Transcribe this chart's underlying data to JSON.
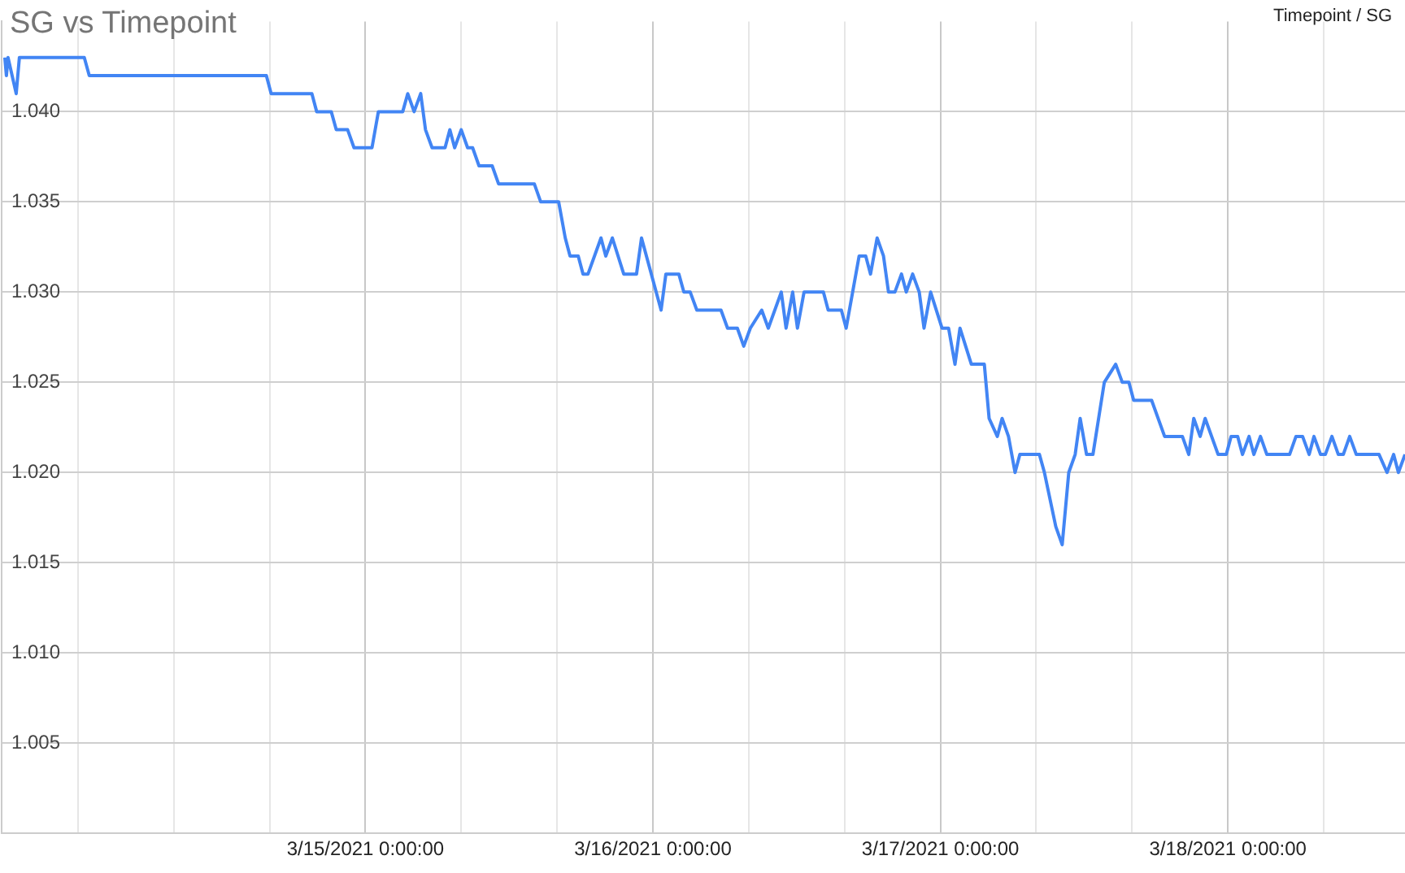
{
  "chart_data": {
    "type": "line",
    "title": "SG vs Timepoint",
    "annotations": [
      "Timepoint / SG"
    ],
    "x": [
      "2021-03-13T17:54",
      "2021-03-13T18:02",
      "2021-03-13T18:10",
      "2021-03-13T18:51",
      "2021-03-13T19:07",
      "2021-03-14T00:32",
      "2021-03-14T00:57",
      "2021-03-14T15:44",
      "2021-03-14T16:08",
      "2021-03-14T19:32",
      "2021-03-14T19:56",
      "2021-03-14T21:09",
      "2021-03-14T21:34",
      "2021-03-14T22:31",
      "2021-03-14T23:03",
      "2021-03-15T00:33",
      "2021-03-15T01:05",
      "2021-03-15T03:07",
      "2021-03-15T03:32",
      "2021-03-15T04:04",
      "2021-03-15T04:37",
      "2021-03-15T05:01",
      "2021-03-15T05:34",
      "2021-03-15T06:39",
      "2021-03-15T07:03",
      "2021-03-15T07:27",
      "2021-03-15T08:00",
      "2021-03-15T08:32",
      "2021-03-15T08:57",
      "2021-03-15T09:29",
      "2021-03-15T10:35",
      "2021-03-15T11:07",
      "2021-03-15T14:06",
      "2021-03-15T14:38",
      "2021-03-15T16:08",
      "2021-03-15T16:41",
      "2021-03-15T17:05",
      "2021-03-15T17:46",
      "2021-03-15T18:10",
      "2021-03-15T18:35",
      "2021-03-15T19:40",
      "2021-03-15T20:04",
      "2021-03-15T20:37",
      "2021-03-15T21:34",
      "2021-03-15T22:38",
      "2021-03-15T23:03",
      "2021-03-16T00:41",
      "2021-03-16T01:05",
      "2021-03-16T02:10",
      "2021-03-16T02:35",
      "2021-03-16T03:07",
      "2021-03-16T03:40",
      "2021-03-16T05:41",
      "2021-03-16T06:14",
      "2021-03-16T07:03",
      "2021-03-16T07:35",
      "2021-03-16T08:08",
      "2021-03-16T09:05",
      "2021-03-16T09:38",
      "2021-03-16T10:43",
      "2021-03-16T11:07",
      "2021-03-16T11:40",
      "2021-03-16T12:04",
      "2021-03-16T12:37",
      "2021-03-16T14:14",
      "2021-03-16T14:38",
      "2021-03-16T15:44",
      "2021-03-16T16:08",
      "2021-03-16T17:13",
      "2021-03-16T17:46",
      "2021-03-16T18:10",
      "2021-03-16T18:43",
      "2021-03-16T19:15",
      "2021-03-16T19:40",
      "2021-03-16T20:12",
      "2021-03-16T20:45",
      "2021-03-16T21:09",
      "2021-03-16T21:41",
      "2021-03-16T22:14",
      "2021-03-16T22:38",
      "2021-03-16T23:11",
      "2021-03-17T00:08",
      "2021-03-17T00:41",
      "2021-03-17T01:13",
      "2021-03-17T01:38",
      "2021-03-17T02:35",
      "2021-03-17T03:40",
      "2021-03-17T04:04",
      "2021-03-17T04:45",
      "2021-03-17T05:09",
      "2021-03-17T05:41",
      "2021-03-17T06:14",
      "2021-03-17T06:38",
      "2021-03-17T08:16",
      "2021-03-17T08:41",
      "2021-03-17T09:38",
      "2021-03-17T10:10",
      "2021-03-17T10:43",
      "2021-03-17T11:15",
      "2021-03-17T11:40",
      "2021-03-17T12:12",
      "2021-03-17T12:44",
      "2021-03-17T13:41",
      "2021-03-17T14:38",
      "2021-03-17T15:11",
      "2021-03-17T15:44",
      "2021-03-17T16:08",
      "2021-03-17T17:38",
      "2021-03-17T18:43",
      "2021-03-17T20:12",
      "2021-03-17T20:44",
      "2021-03-17T21:09",
      "2021-03-17T21:41",
      "2021-03-17T22:06",
      "2021-03-17T23:11",
      "2021-03-17T23:52",
      "2021-03-18T00:16",
      "2021-03-18T00:49",
      "2021-03-18T01:13",
      "2021-03-18T01:46",
      "2021-03-18T02:10",
      "2021-03-18T02:43",
      "2021-03-18T03:15",
      "2021-03-18T05:09",
      "2021-03-18T05:41",
      "2021-03-18T06:14",
      "2021-03-18T06:47",
      "2021-03-18T07:11",
      "2021-03-18T07:44",
      "2021-03-18T08:08",
      "2021-03-18T08:41",
      "2021-03-18T09:13",
      "2021-03-18T09:38",
      "2021-03-18T10:10",
      "2021-03-18T10:43",
      "2021-03-18T12:37",
      "2021-03-18T13:17",
      "2021-03-18T13:50",
      "2021-03-18T14:14",
      "2021-03-18T14:47"
    ],
    "series": [
      {
        "color": "#4285f4",
        "values": [
          1.043,
          1.042,
          1.043,
          1.041,
          1.043,
          1.043,
          1.042,
          1.042,
          1.041,
          1.041,
          1.04,
          1.04,
          1.039,
          1.039,
          1.038,
          1.038,
          1.04,
          1.04,
          1.041,
          1.04,
          1.041,
          1.039,
          1.038,
          1.038,
          1.039,
          1.038,
          1.039,
          1.038,
          1.038,
          1.037,
          1.037,
          1.036,
          1.036,
          1.035,
          1.035,
          1.033,
          1.032,
          1.032,
          1.031,
          1.031,
          1.033,
          1.032,
          1.033,
          1.031,
          1.031,
          1.033,
          1.029,
          1.031,
          1.031,
          1.03,
          1.03,
          1.029,
          1.029,
          1.028,
          1.028,
          1.027,
          1.028,
          1.029,
          1.028,
          1.03,
          1.028,
          1.03,
          1.028,
          1.03,
          1.03,
          1.029,
          1.029,
          1.028,
          1.032,
          1.032,
          1.031,
          1.033,
          1.032,
          1.03,
          1.03,
          1.031,
          1.03,
          1.031,
          1.03,
          1.028,
          1.03,
          1.028,
          1.028,
          1.026,
          1.028,
          1.026,
          1.026,
          1.023,
          1.022,
          1.023,
          1.022,
          1.02,
          1.021,
          1.021,
          1.02,
          1.017,
          1.016,
          1.02,
          1.021,
          1.023,
          1.021,
          1.021,
          1.025,
          1.026,
          1.025,
          1.025,
          1.024,
          1.024,
          1.022,
          1.022,
          1.021,
          1.023,
          1.022,
          1.023,
          1.021,
          1.021,
          1.022,
          1.022,
          1.021,
          1.022,
          1.021,
          1.022,
          1.021,
          1.021,
          1.022,
          1.022,
          1.021,
          1.022,
          1.021,
          1.021,
          1.022,
          1.021,
          1.021,
          1.022,
          1.021,
          1.021,
          1.02,
          1.021,
          1.02,
          1.021
        ]
      }
    ],
    "xlim": [
      "2021-03-13T17:38",
      "2021-03-18T14:47"
    ],
    "xticks": [
      {
        "value": "2021-03-14T00:00",
        "label": null
      },
      {
        "value": "2021-03-14T08:00",
        "label": null
      },
      {
        "value": "2021-03-14T16:00",
        "label": null
      },
      {
        "value": "2021-03-15T00:00",
        "label": "3/15/2021 0:00:00"
      },
      {
        "value": "2021-03-15T08:00",
        "label": null
      },
      {
        "value": "2021-03-15T16:00",
        "label": null
      },
      {
        "value": "2021-03-16T00:00",
        "label": "3/16/2021 0:00:00"
      },
      {
        "value": "2021-03-16T08:00",
        "label": null
      },
      {
        "value": "2021-03-16T16:00",
        "label": null
      },
      {
        "value": "2021-03-17T00:00",
        "label": "3/17/2021 0:00:00"
      },
      {
        "value": "2021-03-17T08:00",
        "label": null
      },
      {
        "value": "2021-03-17T16:00",
        "label": null
      },
      {
        "value": "2021-03-18T00:00",
        "label": "3/18/2021 0:00:00"
      },
      {
        "value": "2021-03-18T08:00",
        "label": null
      }
    ],
    "ylim": [
      1.0,
      1.045
    ],
    "yticks": [
      1.005,
      {
        "value": 1.01,
        "label": "1.010"
      },
      1.015,
      {
        "value": 1.02,
        "label": "1.020"
      },
      1.025,
      {
        "value": 1.03,
        "label": "1.030"
      },
      1.035,
      {
        "value": 1.04,
        "label": "1.040"
      }
    ],
    "grid": true,
    "legend": false,
    "marker": "none",
    "line_style": "solid"
  }
}
